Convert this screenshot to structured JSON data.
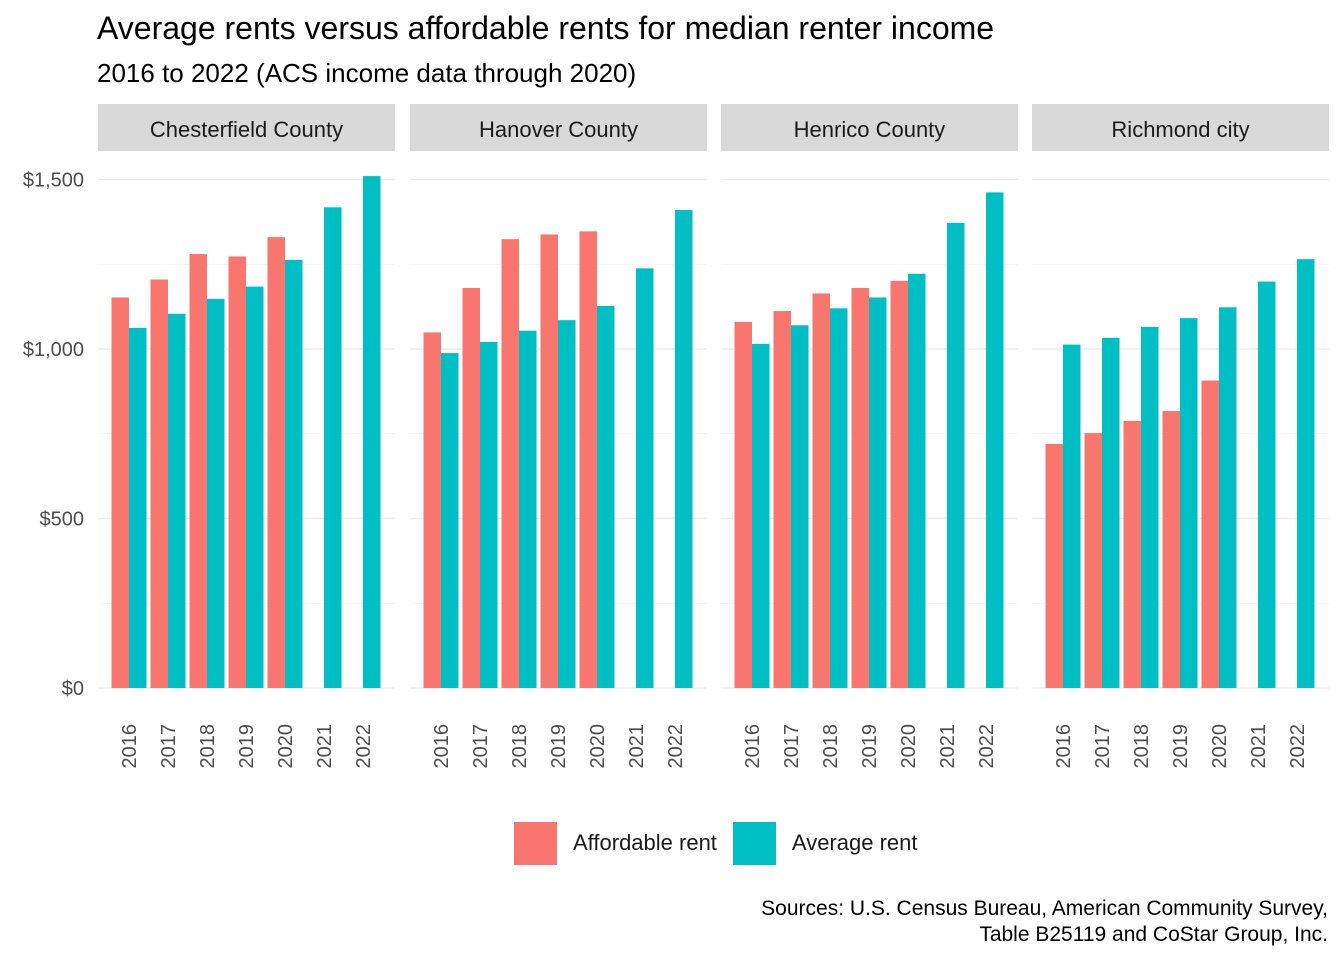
{
  "chart_data": {
    "type": "bar",
    "title": "Average rents versus affordable rents for median renter income",
    "subtitle": "2016 to 2022 (ACS income data through 2020)",
    "caption": [
      "Sources: U.S. Census Bureau, American Community Survey,",
      "Table B25119 and CoStar Group, Inc."
    ],
    "xlabel": "",
    "ylabel": "",
    "ylim": [
      0,
      1550
    ],
    "y_ticks": [
      0,
      500,
      1000,
      1500
    ],
    "y_tick_labels": [
      "$0",
      "$500",
      "$1,000",
      "$1,500"
    ],
    "categories": [
      "2016",
      "2017",
      "2018",
      "2019",
      "2020",
      "2021",
      "2022"
    ],
    "series_names": [
      "Affordable rent",
      "Average rent"
    ],
    "colors": {
      "affordable": "#F8766D",
      "average": "#00BFC4",
      "strip": "#D9D9D9",
      "grid": "#EBEBEB",
      "axis_text": "#4D4D4D"
    },
    "legend_position": "bottom",
    "facets": [
      {
        "name": "Chesterfield County",
        "series": [
          {
            "name": "Affordable rent",
            "values": [
              1152,
              1205,
              1280,
              1273,
              1330,
              null,
              null
            ]
          },
          {
            "name": "Average rent",
            "values": [
              1062,
              1104,
              1148,
              1184,
              1263,
              1418,
              1510
            ]
          }
        ]
      },
      {
        "name": "Hanover County",
        "series": [
          {
            "name": "Affordable rent",
            "values": [
              1049,
              1180,
              1324,
              1338,
              1347,
              null,
              null
            ]
          },
          {
            "name": "Average rent",
            "values": [
              988,
              1021,
              1054,
              1085,
              1127,
              1238,
              1410
            ]
          }
        ]
      },
      {
        "name": "Henrico County",
        "series": [
          {
            "name": "Affordable rent",
            "values": [
              1080,
              1112,
              1164,
              1180,
              1201,
              null,
              null
            ]
          },
          {
            "name": "Average rent",
            "values": [
              1015,
              1070,
              1120,
              1152,
              1222,
              1372,
              1462
            ]
          }
        ]
      },
      {
        "name": "Richmond city",
        "series": [
          {
            "name": "Affordable rent",
            "values": [
              720,
              752,
              788,
              817,
              907,
              null,
              null
            ]
          },
          {
            "name": "Average rent",
            "values": [
              1013,
              1033,
              1065,
              1091,
              1123,
              1199,
              1265
            ]
          }
        ]
      }
    ]
  }
}
